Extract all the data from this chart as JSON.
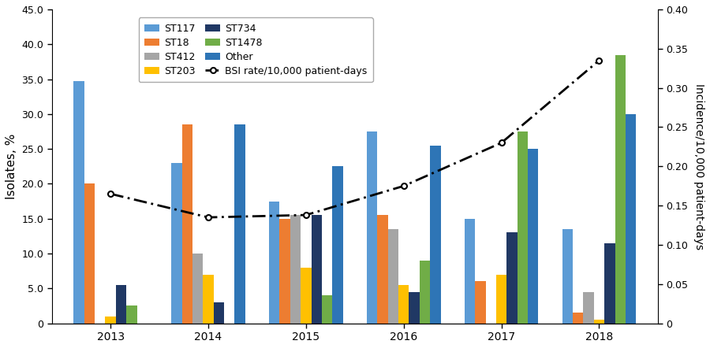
{
  "years": [
    2013,
    2014,
    2015,
    2016,
    2017,
    2018
  ],
  "categories": [
    "ST117",
    "ST18",
    "ST412",
    "ST203",
    "ST734",
    "ST1478",
    "Other"
  ],
  "colors": [
    "#5B9BD5",
    "#ED7D31",
    "#A5A5A5",
    "#FFC000",
    "#203864",
    "#70AD47",
    "#2E75B6"
  ],
  "bar_data": {
    "ST117": [
      34.7,
      23.0,
      17.5,
      27.5,
      15.0,
      13.5
    ],
    "ST18": [
      20.0,
      28.5,
      15.0,
      15.5,
      6.0,
      1.5
    ],
    "ST412": [
      0.0,
      10.0,
      15.5,
      13.5,
      0.0,
      4.5
    ],
    "ST203": [
      1.0,
      7.0,
      8.0,
      5.5,
      7.0,
      0.5
    ],
    "ST734": [
      5.5,
      3.0,
      15.5,
      4.5,
      13.0,
      11.5
    ],
    "ST1478": [
      2.5,
      0.0,
      4.0,
      9.0,
      27.5,
      38.5
    ],
    "Other": [
      0.0,
      28.5,
      22.5,
      25.5,
      25.0,
      30.0
    ]
  },
  "bsi_rate": [
    0.165,
    0.135,
    0.138,
    0.175,
    0.23,
    0.335
  ],
  "ylim_left": [
    0,
    45
  ],
  "ylim_right": [
    0,
    0.4
  ],
  "yticks_left": [
    0,
    5,
    10,
    15,
    20,
    25,
    30,
    35,
    40,
    45
  ],
  "yticks_right": [
    0,
    0.05,
    0.1,
    0.15,
    0.2,
    0.25,
    0.3,
    0.35,
    0.4
  ],
  "ylabel_left": "Isolates, %",
  "ylabel_right": "Incidence/10,000 patient-days",
  "bsi_line_label": "BSI rate/10,000 patient-days",
  "bar_width": 0.108,
  "fig_width": 9.0,
  "fig_height": 4.42
}
